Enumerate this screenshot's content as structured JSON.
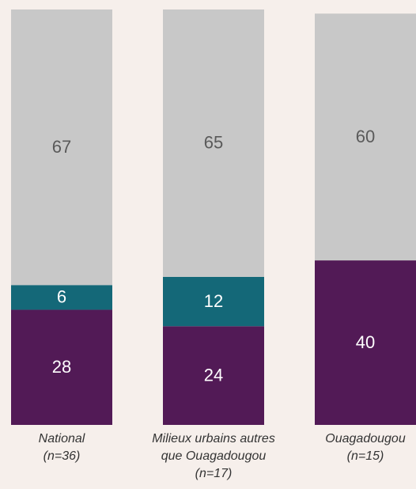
{
  "chart_data": {
    "type": "stacked_bar",
    "categories": [
      "National\n(n=36)",
      "Milieux urbains autres\nque Ouagadougou\n(n=17)",
      "Ouagadougou\n(n=15)"
    ],
    "series": [
      {
        "color": "#521a56",
        "values": [
          28,
          24,
          40
        ]
      },
      {
        "color": "#146878",
        "values": [
          6,
          12,
          null
        ]
      },
      {
        "color": "#c8c8c8",
        "values": [
          67,
          65,
          60
        ]
      }
    ]
  }
}
